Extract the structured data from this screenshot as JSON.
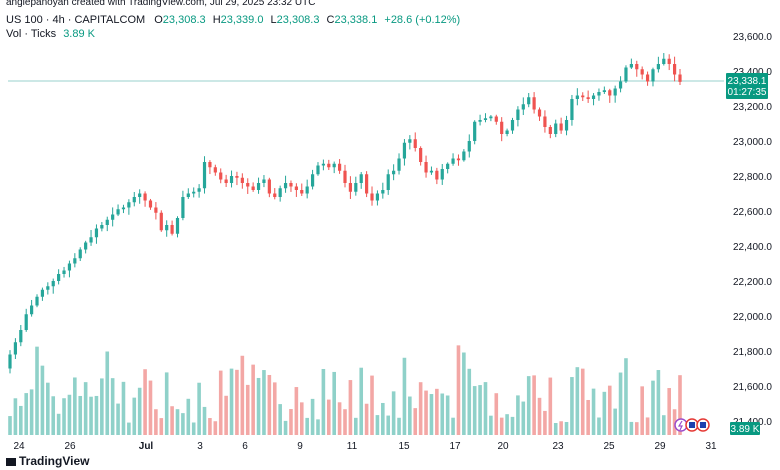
{
  "header": {
    "credit": "angiepanoyan created with TradingView.com, Jul 29, 2025 23:32 UTC",
    "symbol": "US 100 · 4h · CAPITALCOM",
    "o_label": "O",
    "o": "23,308.3",
    "h_label": "H",
    "h": "23,339.0",
    "l_label": "L",
    "l": "23,308.3",
    "c_label": "C",
    "c": "23,338.1",
    "change": "+28.6 (+0.12%)",
    "vol_label": "Vol · Ticks",
    "vol_value": "3.89 K"
  },
  "price_badge": {
    "price": "23,338.1",
    "countdown": "01:27:35"
  },
  "vol_badge": "3.89 K",
  "footer": {
    "logo_text": "TradingView"
  },
  "colors": {
    "up": "#26a69a",
    "down": "#ef5350",
    "vol_up": "#8fd1c9",
    "vol_down": "#f3a7a5",
    "price_line": "#9ad2cc",
    "badge": "#089981"
  },
  "chart_data": {
    "type": "candlestick",
    "y_axis": {
      "ticks": [
        "23,600.0",
        "23,400.0",
        "23,200.0",
        "23,000.0",
        "22,800.0",
        "22,600.0",
        "22,400.0",
        "22,200.0",
        "22,000.0",
        "21,800.0",
        "21,600.0",
        "21,400.0"
      ],
      "ylim": [
        21330,
        23680
      ]
    },
    "x_axis": {
      "ticks": [
        "24",
        "26",
        "Jul",
        "3",
        "6",
        "9",
        "11",
        "15",
        "17",
        "20",
        "23",
        "25",
        "29",
        "31"
      ]
    },
    "last_price": 23338.1,
    "closes": [
      21780,
      21850,
      21920,
      22010,
      22060,
      22110,
      22150,
      22170,
      22200,
      22240,
      22260,
      22300,
      22330,
      22380,
      22420,
      22450,
      22500,
      22520,
      22550,
      22580,
      22610,
      22620,
      22650,
      22680,
      22700,
      22660,
      22620,
      22590,
      22490,
      22520,
      22470,
      22560,
      22680,
      22700,
      22710,
      22730,
      22880,
      22850,
      22820,
      22780,
      22760,
      22800,
      22790,
      22760,
      22740,
      22720,
      22760,
      22780,
      22700,
      22680,
      22730,
      22760,
      22740,
      22720,
      22700,
      22740,
      22810,
      22860,
      22870,
      22850,
      22870,
      22830,
      22760,
      22710,
      22760,
      22810,
      22700,
      22660,
      22700,
      22720,
      22810,
      22830,
      22900,
      22990,
      23010,
      22960,
      22880,
      22820,
      22830,
      22780,
      22840,
      22870,
      22900,
      22890,
      22940,
      23000,
      23110,
      23120,
      23130,
      23140,
      23110,
      23040,
      23060,
      23120,
      23180,
      23210,
      23250,
      23180,
      23140,
      23080,
      23040,
      23100,
      23060,
      23120,
      23240,
      23260,
      23250,
      23240,
      23260,
      23280,
      23290,
      23260,
      23300,
      23340,
      23420,
      23440,
      23410,
      23380,
      23340,
      23410,
      23440,
      23470,
      23440,
      23380,
      23338
    ],
    "volume_max": 6100
  }
}
